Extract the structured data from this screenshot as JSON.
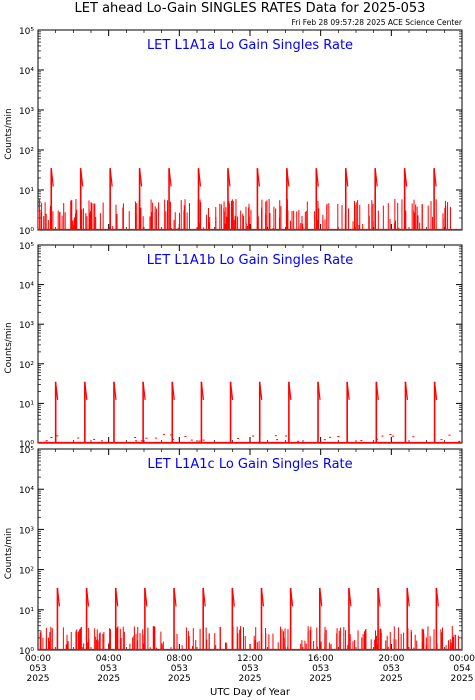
{
  "header": {
    "title": "LET ahead Lo-Gain SINGLES RATES Data for 2025-053",
    "timestamp": "Fri Feb 28 09:57:28 2025 ACE Science Center"
  },
  "colors": {
    "data": "#ff0000",
    "panel_title": "#0000ff",
    "axis": "#000000",
    "background": "#ffffff"
  },
  "xaxis": {
    "label": "UTC Day of Year",
    "ticks": [
      {
        "time": "00:00",
        "day": "053",
        "year": "2025",
        "hour": 0
      },
      {
        "time": "04:00",
        "day": "053",
        "year": "2025",
        "hour": 4
      },
      {
        "time": "08:00",
        "day": "053",
        "year": "2025",
        "hour": 8
      },
      {
        "time": "12:00",
        "day": "053",
        "year": "2025",
        "hour": 12
      },
      {
        "time": "16:00",
        "day": "053",
        "year": "2025",
        "hour": 16
      },
      {
        "time": "20:00",
        "day": "053",
        "year": "2025",
        "hour": 20
      },
      {
        "time": "00:00",
        "day": "054",
        "year": "2025",
        "hour": 24
      }
    ]
  },
  "chart_data": [
    {
      "type": "line",
      "title": "LET L1A1a Lo Gain Singles Rate",
      "ylabel": "Counts/min",
      "xlabel": "",
      "yscale": "log",
      "ylim": [
        1,
        100000
      ],
      "xlim_hours": [
        0,
        24
      ],
      "ytick_labels": [
        "10⁰",
        "10¹",
        "10²",
        "10³",
        "10⁴",
        "10⁵"
      ],
      "spikes": {
        "peak": 35,
        "start_hour": 0.75,
        "period_hours": 1.667,
        "count": 14
      },
      "baseline": {
        "low": 1,
        "high": 6
      }
    },
    {
      "type": "line",
      "title": "LET L1A1b Lo Gain Singles Rate",
      "ylabel": "Counts/min",
      "xlabel": "",
      "yscale": "log",
      "ylim": [
        1,
        100000
      ],
      "xlim_hours": [
        0,
        24
      ],
      "ytick_labels": [
        "10⁰",
        "10¹",
        "10²",
        "10³",
        "10⁴",
        "10⁵"
      ],
      "spikes": {
        "peak": 35,
        "start_hour": 1.0,
        "period_hours": 1.65,
        "count": 14
      },
      "baseline": {
        "low": 1,
        "high": 2
      }
    },
    {
      "type": "line",
      "title": "LET L1A1c Lo Gain Singles Rate",
      "ylabel": "Counts/min",
      "xlabel": "",
      "yscale": "log",
      "ylim": [
        1,
        100000
      ],
      "xlim_hours": [
        0,
        24
      ],
      "ytick_labels": [
        "10⁰",
        "10¹",
        "10²",
        "10³",
        "10⁴",
        "10⁵"
      ],
      "spikes": {
        "peak": 35,
        "start_hour": 1.1,
        "period_hours": 1.65,
        "count": 14
      },
      "baseline": {
        "low": 1,
        "high": 4
      }
    }
  ]
}
